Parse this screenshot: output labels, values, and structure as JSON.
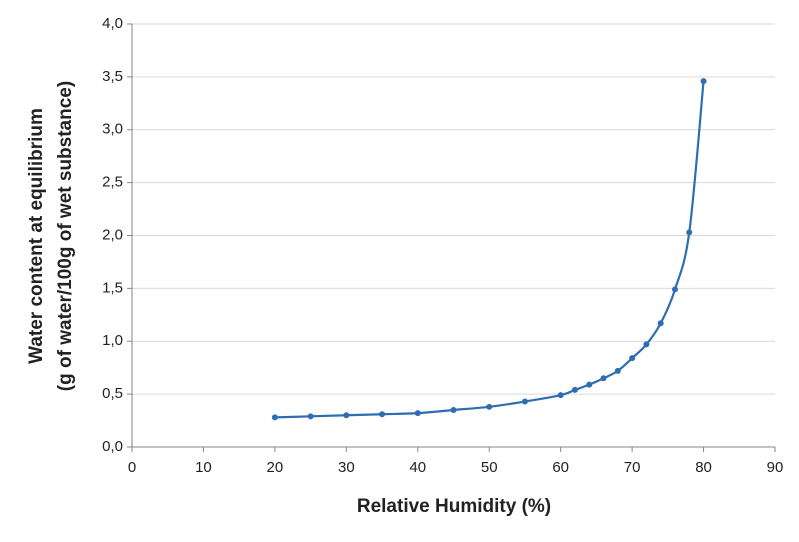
{
  "chart_data": {
    "type": "line",
    "x_label": "Relative Humidity (%)",
    "y_label": [
      "Water content at equilibrium",
      "(g of water/100g of wet substance)"
    ],
    "x": [
      20,
      25,
      30,
      35,
      40,
      45,
      50,
      55,
      60,
      62,
      64,
      66,
      68,
      70,
      72,
      74,
      76,
      78,
      80
    ],
    "series": [
      {
        "color": "#2f6db3",
        "values": [
          0.28,
          0.29,
          0.3,
          0.31,
          0.32,
          0.35,
          0.38,
          0.43,
          0.49,
          0.54,
          0.59,
          0.65,
          0.72,
          0.84,
          0.97,
          1.17,
          1.49,
          2.03,
          3.46
        ]
      }
    ],
    "xlim": [
      0,
      90
    ],
    "xticks": [
      0,
      10,
      20,
      30,
      40,
      50,
      60,
      70,
      80,
      90
    ],
    "ylim": [
      0,
      4
    ],
    "yticks": [
      {
        "value": 0,
        "label": "0,0"
      },
      {
        "value": 0.5,
        "label": "0,5"
      },
      {
        "value": 1,
        "label": "1,0"
      },
      {
        "value": 1.5,
        "label": "1,5"
      },
      {
        "value": 2,
        "label": "2,0"
      },
      {
        "value": 2.5,
        "label": "2,5"
      },
      {
        "value": 3,
        "label": "3,0"
      },
      {
        "value": 3.5,
        "label": "3,5"
      },
      {
        "value": 4,
        "label": "4,0"
      }
    ],
    "grid": true,
    "smooth": true,
    "markers": true
  }
}
